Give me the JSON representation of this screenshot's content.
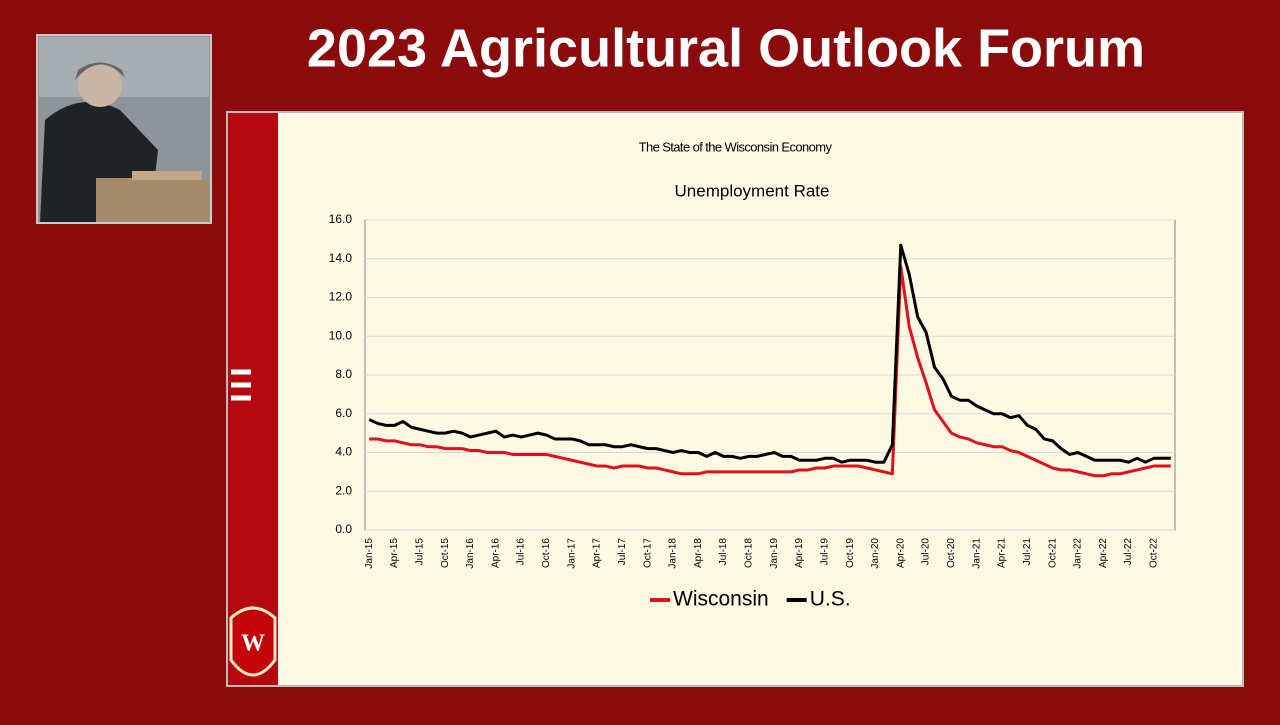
{
  "header": {
    "title": "2023 Agricultural Outlook Forum"
  },
  "chart_data": {
    "type": "line",
    "subtitle": "The State of the Wisconsin Economy",
    "title": "Unemployment Rate",
    "categories": [
      "Jan-15",
      null,
      null,
      "Apr-15",
      null,
      null,
      "Jul-15",
      null,
      null,
      "Oct-15",
      null,
      null,
      "Jan-16",
      null,
      null,
      "Apr-16",
      null,
      null,
      "Jul-16",
      null,
      null,
      "Oct-16",
      null,
      null,
      "Jan-17",
      null,
      null,
      "Apr-17",
      null,
      null,
      "Jul-17",
      null,
      null,
      "Oct-17",
      null,
      null,
      "Jan-18",
      null,
      null,
      "Apr-18",
      null,
      null,
      "Jul-18",
      null,
      null,
      "Oct-18",
      null,
      null,
      "Jan-19",
      null,
      null,
      "Apr-19",
      null,
      null,
      "Jul-19",
      null,
      null,
      "Oct-19",
      null,
      null,
      "Jan-20",
      null,
      null,
      "Apr-20",
      null,
      null,
      "Jul-20",
      null,
      null,
      "Oct-20",
      null,
      null,
      "Jan-21",
      null,
      null,
      "Apr-21",
      null,
      null,
      "Jul-21",
      null,
      null,
      "Oct-21",
      null,
      null,
      "Jan-22",
      null,
      null,
      "Apr-22",
      null,
      null,
      "Jul-22",
      null,
      null,
      "Oct-22",
      null,
      null
    ],
    "series": [
      {
        "name": "Wisconsin",
        "color": "#e0101e",
        "values": [
          4.7,
          4.7,
          4.6,
          4.6,
          4.5,
          4.4,
          4.4,
          4.3,
          4.3,
          4.2,
          4.2,
          4.2,
          4.1,
          4.1,
          4.0,
          4.0,
          4.0,
          3.9,
          3.9,
          3.9,
          3.9,
          3.9,
          3.8,
          3.7,
          3.6,
          3.5,
          3.4,
          3.3,
          3.3,
          3.2,
          3.3,
          3.3,
          3.3,
          3.2,
          3.2,
          3.1,
          3.0,
          2.9,
          2.9,
          2.9,
          3.0,
          3.0,
          3.0,
          3.0,
          3.0,
          3.0,
          3.0,
          3.0,
          3.0,
          3.0,
          3.0,
          3.1,
          3.1,
          3.2,
          3.2,
          3.3,
          3.3,
          3.3,
          3.3,
          3.2,
          3.1,
          3.0,
          2.9,
          13.6,
          10.5,
          8.9,
          7.6,
          6.2,
          5.6,
          5.0,
          4.8,
          4.7,
          4.5,
          4.4,
          4.3,
          4.3,
          4.1,
          4.0,
          3.8,
          3.6,
          3.4,
          3.2,
          3.1,
          3.1,
          3.0,
          2.9,
          2.8,
          2.8,
          2.9,
          2.9,
          3.0,
          3.1,
          3.2,
          3.3,
          3.3,
          3.3
        ]
      },
      {
        "name": "U.S.",
        "color": "#000000",
        "values": [
          5.7,
          5.5,
          5.4,
          5.4,
          5.6,
          5.3,
          5.2,
          5.1,
          5.0,
          5.0,
          5.1,
          5.0,
          4.8,
          4.9,
          5.0,
          5.1,
          4.8,
          4.9,
          4.8,
          4.9,
          5.0,
          4.9,
          4.7,
          4.7,
          4.7,
          4.6,
          4.4,
          4.4,
          4.4,
          4.3,
          4.3,
          4.4,
          4.3,
          4.2,
          4.2,
          4.1,
          4.0,
          4.1,
          4.0,
          4.0,
          3.8,
          4.0,
          3.8,
          3.8,
          3.7,
          3.8,
          3.8,
          3.9,
          4.0,
          3.8,
          3.8,
          3.6,
          3.6,
          3.6,
          3.7,
          3.7,
          3.5,
          3.6,
          3.6,
          3.6,
          3.5,
          3.5,
          4.4,
          14.7,
          13.2,
          11.0,
          10.2,
          8.4,
          7.8,
          6.9,
          6.7,
          6.7,
          6.4,
          6.2,
          6.0,
          6.0,
          5.8,
          5.9,
          5.4,
          5.2,
          4.7,
          4.6,
          4.2,
          3.9,
          4.0,
          3.8,
          3.6,
          3.6,
          3.6,
          3.6,
          3.5,
          3.7,
          3.5,
          3.7,
          3.7,
          3.7
        ]
      }
    ],
    "ylim": [
      0,
      16
    ],
    "yticks": [
      {
        "value": 0,
        "label": "0.0"
      },
      {
        "value": 2,
        "label": "2.0"
      },
      {
        "value": 4,
        "label": "4.0"
      },
      {
        "value": 6,
        "label": "6.0"
      },
      {
        "value": 8,
        "label": "8.0"
      },
      {
        "value": 10,
        "label": "10.0"
      },
      {
        "value": 12,
        "label": "12.0"
      },
      {
        "value": 14,
        "label": "14.0"
      },
      {
        "value": 16,
        "label": "16.0"
      }
    ],
    "grid": true,
    "legend": "bottom"
  }
}
